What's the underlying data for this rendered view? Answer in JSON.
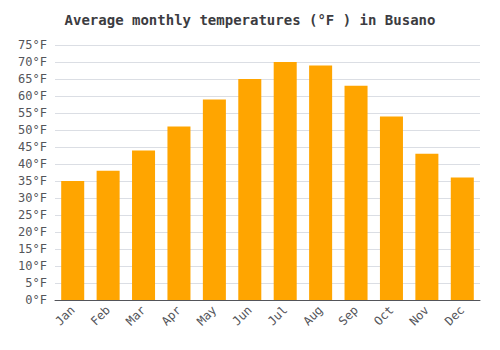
{
  "chart_data": {
    "type": "bar",
    "title": "Average monthly temperatures (°F ) in Busano",
    "categories": [
      "Jan",
      "Feb",
      "Mar",
      "Apr",
      "May",
      "Jun",
      "Jul",
      "Aug",
      "Sep",
      "Oct",
      "Nov",
      "Dec"
    ],
    "values": [
      35,
      38,
      44,
      51,
      59,
      65,
      70,
      69,
      63,
      54,
      43,
      36
    ],
    "color": "#FFA500",
    "ylim": [
      0,
      75
    ],
    "yticks": [
      {
        "value": 0,
        "label": "0°F"
      },
      {
        "value": 5,
        "label": "5°F"
      },
      {
        "value": 10,
        "label": "10°F"
      },
      {
        "value": 15,
        "label": "15°F"
      },
      {
        "value": 20,
        "label": "20°F"
      },
      {
        "value": 25,
        "label": "25°F"
      },
      {
        "value": 30,
        "label": "30°F"
      },
      {
        "value": 35,
        "label": "35°F"
      },
      {
        "value": 40,
        "label": "40°F"
      },
      {
        "value": 45,
        "label": "45°F"
      },
      {
        "value": 50,
        "label": "50°F"
      },
      {
        "value": 55,
        "label": "55°F"
      },
      {
        "value": 60,
        "label": "60°F"
      },
      {
        "value": 65,
        "label": "65°F"
      },
      {
        "value": 70,
        "label": "70°F"
      },
      {
        "value": 75,
        "label": "75°F"
      }
    ],
    "grid": true
  }
}
